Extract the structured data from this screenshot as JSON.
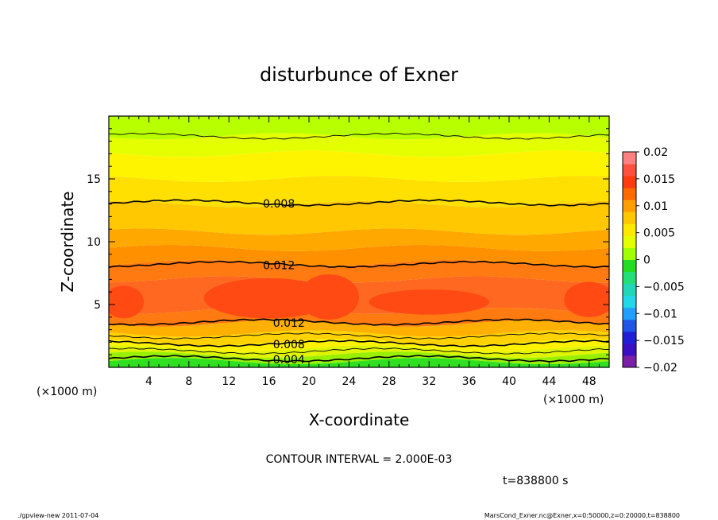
{
  "chart_data": {
    "type": "contour",
    "title": "disturbunce of Exner",
    "xlabel": "X-coordinate",
    "ylabel": "Z-coordinate",
    "x_unit": "(×1000 m)",
    "y_unit": "(×1000 m)",
    "xlim": [
      0,
      50
    ],
    "ylim": [
      0,
      20
    ],
    "x_ticks": [
      4,
      8,
      12,
      16,
      20,
      24,
      28,
      32,
      36,
      40,
      44,
      48
    ],
    "y_ticks": [
      5,
      10,
      15
    ],
    "contour_interval_text": "CONTOUR INTERVAL = 2.000E-03",
    "time_text": "t=838800 s",
    "contour_labels": [
      {
        "text": "0.008",
        "x": 17,
        "y": 13.1
      },
      {
        "text": "0.012",
        "x": 17,
        "y": 8.2
      },
      {
        "text": "0.012",
        "x": 18,
        "y": 3.6
      },
      {
        "text": "0.008",
        "x": 18,
        "y": 1.9
      },
      {
        "text": "0.004",
        "x": 18,
        "y": 0.7
      }
    ],
    "colorbar": {
      "min": -0.02,
      "max": 0.02,
      "tick_labels": [
        "0.02",
        "0.015",
        "0.01",
        "0.005",
        "0",
        "−0.005",
        "−0.01",
        "−0.015",
        "−0.02"
      ],
      "colors": [
        "#7a1fa6",
        "#3b0fc4",
        "#1f1fd8",
        "#1f55e8",
        "#1fa0ff",
        "#1fd8e8",
        "#1fd8b8",
        "#22e078",
        "#22dd22",
        "#a0ff00",
        "#e4ff00",
        "#ffe800",
        "#ffc800",
        "#ffa000",
        "#ff6a00",
        "#ff3a10",
        "#ff5040",
        "#ff8080"
      ]
    },
    "bands": [
      {
        "z_from": 0.0,
        "z_to": 0.5,
        "color": "#2fe020"
      },
      {
        "z_from": 0.5,
        "z_to": 1.0,
        "color": "#98f000"
      },
      {
        "z_from": 1.0,
        "z_to": 1.5,
        "color": "#e0f400"
      },
      {
        "z_from": 1.5,
        "z_to": 2.0,
        "color": "#fff200"
      },
      {
        "z_from": 2.0,
        "z_to": 2.7,
        "color": "#ffd200"
      },
      {
        "z_from": 2.7,
        "z_to": 3.5,
        "color": "#ffb000"
      },
      {
        "z_from": 3.5,
        "z_to": 4.5,
        "color": "#ff7a10"
      },
      {
        "z_from": 4.5,
        "z_to": 7.0,
        "color": "#ff6820"
      },
      {
        "z_from": 7.0,
        "z_to": 8.3,
        "color": "#ff7a10"
      },
      {
        "z_from": 8.3,
        "z_to": 9.5,
        "color": "#ff9000"
      },
      {
        "z_from": 9.5,
        "z_to": 10.8,
        "color": "#ffa800"
      },
      {
        "z_from": 10.8,
        "z_to": 13.0,
        "color": "#ffc800"
      },
      {
        "z_from": 13.0,
        "z_to": 15.0,
        "color": "#ffe000"
      },
      {
        "z_from": 15.0,
        "z_to": 17.0,
        "color": "#fff400"
      },
      {
        "z_from": 17.0,
        "z_to": 18.4,
        "color": "#e4ff00"
      },
      {
        "z_from": 18.4,
        "z_to": 20.0,
        "color": "#b8ff00"
      }
    ],
    "blobs": [
      {
        "cx": 1.5,
        "cz": 5.2,
        "rx": 2.0,
        "rz": 1.3
      },
      {
        "cx": 16.0,
        "cz": 5.5,
        "rx": 6.5,
        "rz": 1.6
      },
      {
        "cx": 22.0,
        "cz": 5.6,
        "rx": 3.0,
        "rz": 1.8
      },
      {
        "cx": 32.0,
        "cz": 5.2,
        "rx": 6.0,
        "rz": 1.0
      },
      {
        "cx": 48.0,
        "cz": 5.4,
        "rx": 2.5,
        "rz": 1.4
      }
    ],
    "contour_lines_z": [
      0.7,
      1.3,
      1.9,
      2.5,
      3.6,
      8.2,
      13.1,
      18.4
    ]
  },
  "footer": {
    "left": "./gpview-new   2011-07-04",
    "right": "MarsCond_Exner.nc@Exner,x=0:50000,z=0:20000,t=838800"
  }
}
